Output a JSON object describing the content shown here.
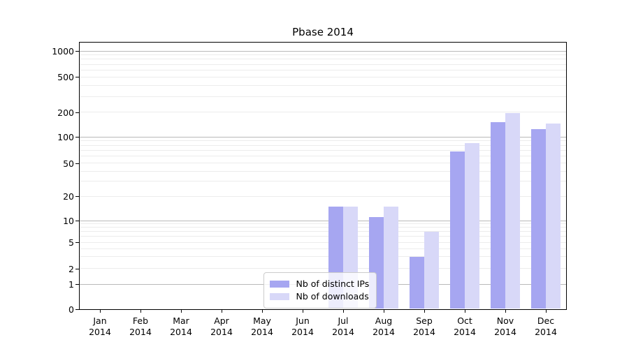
{
  "title": "Pbase 2014",
  "chart_data": {
    "type": "bar",
    "title": "Pbase 2014",
    "x": {
      "categories": [
        "Jan",
        "Feb",
        "Mar",
        "Apr",
        "May",
        "Jun",
        "Jul",
        "Aug",
        "Sep",
        "Oct",
        "Nov",
        "Dec"
      ],
      "year": "2014"
    },
    "y_axis": {
      "scale": "symlog",
      "ticks": [
        0,
        1,
        2,
        5,
        10,
        20,
        50,
        100,
        200,
        500,
        1000
      ],
      "grid_major": [
        1,
        10,
        100,
        1000
      ],
      "grid_minor_decades": [
        1,
        10,
        100
      ]
    },
    "series": [
      {
        "name": "Nb of distinct IPs",
        "color": "#a6a6f1",
        "values": [
          0,
          0,
          0,
          0,
          0,
          0,
          15,
          11,
          3,
          68,
          150,
          125
        ]
      },
      {
        "name": "Nb of downloads",
        "color": "#d8d8f8",
        "values": [
          0,
          0,
          0,
          0,
          0,
          0,
          15,
          15,
          7,
          85,
          195,
          145
        ]
      }
    ],
    "legend": {
      "position": "lower center",
      "entries": [
        "Nb of distinct IPs",
        "Nb of downloads"
      ]
    },
    "grid": {
      "horizontal": true,
      "minor": true
    }
  }
}
